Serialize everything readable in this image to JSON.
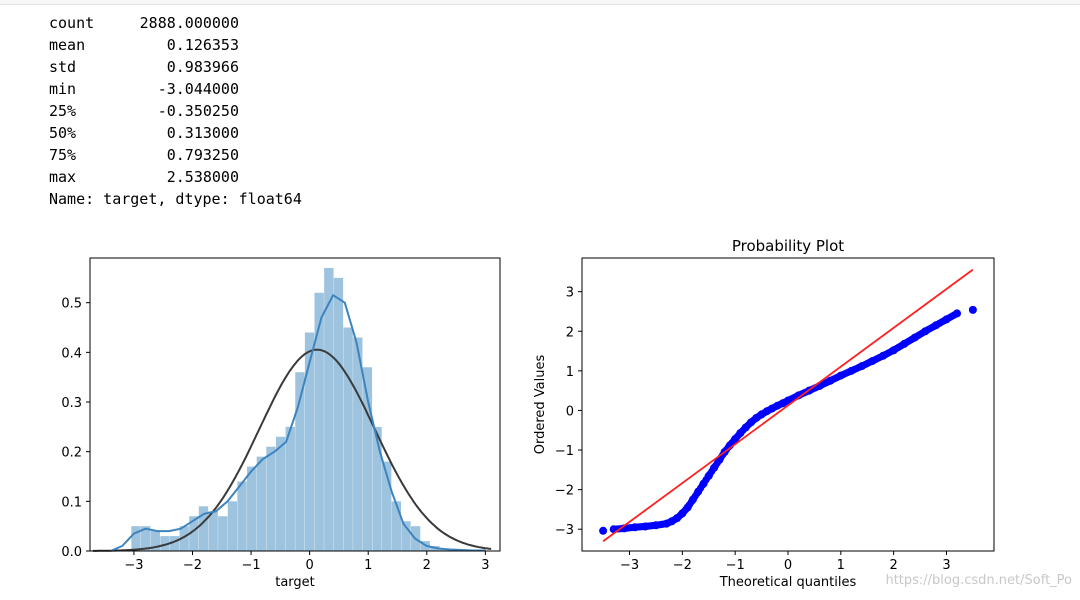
{
  "describe": {
    "rows": [
      {
        "key": "count",
        "value": "2888.000000"
      },
      {
        "key": "mean",
        "value": "0.126353"
      },
      {
        "key": "std",
        "value": "0.983966"
      },
      {
        "key": "min",
        "value": "-3.044000"
      },
      {
        "key": "25%",
        "value": "-0.350250"
      },
      {
        "key": "50%",
        "value": "0.313000"
      },
      {
        "key": "75%",
        "value": "0.793250"
      },
      {
        "key": "max",
        "value": "2.538000"
      }
    ],
    "footer": "Name: target, dtype: float64"
  },
  "watermark": "https://blog.csdn.net/Soft_Po",
  "chart_data": [
    {
      "type": "bar",
      "title": "",
      "xlabel": "target",
      "ylabel": "",
      "xlim": [
        -3.75,
        3.25
      ],
      "ylim": [
        0,
        0.59
      ],
      "x_ticks": [
        -3,
        -2,
        -1,
        0,
        1,
        2,
        3
      ],
      "x_tick_labels": [
        "−3",
        "−2",
        "−1",
        "0",
        "1",
        "2",
        "3"
      ],
      "y_ticks": [
        0,
        0.1,
        0.2,
        0.3,
        0.4,
        0.5
      ],
      "y_tick_labels": [
        "0.0",
        "0.1",
        "0.2",
        "0.3",
        "0.4",
        "0.5"
      ],
      "grid": false,
      "colors": {
        "hist": "#9dc3df",
        "kde": "#3d84be",
        "normal": "#3a3a3a"
      },
      "histogram": {
        "bin_edges": [
          -3.044,
          -2.8794,
          -2.7148,
          -2.5502,
          -2.3856,
          -2.221,
          -2.0564,
          -1.8918,
          -1.7272,
          -1.5626,
          -1.398,
          -1.2334,
          -1.0688,
          -0.9042,
          -0.7396,
          -0.575,
          -0.4104,
          -0.2458,
          -0.0812,
          0.0834,
          0.248,
          0.4126,
          0.5772,
          0.7418,
          0.9064,
          1.071,
          1.2356,
          1.4002,
          1.5648,
          1.7294,
          1.894,
          2.0586,
          2.2232,
          2.3878,
          2.538
        ],
        "density": [
          0.05,
          0.05,
          0.04,
          0.03,
          0.03,
          0.05,
          0.07,
          0.09,
          0.08,
          0.07,
          0.1,
          0.14,
          0.17,
          0.19,
          0.21,
          0.23,
          0.25,
          0.36,
          0.44,
          0.52,
          0.57,
          0.55,
          0.45,
          0.43,
          0.37,
          0.25,
          0.18,
          0.1,
          0.06,
          0.05,
          0.02,
          0.01,
          0.005,
          0.003
        ]
      },
      "kde": {
        "x": [
          -3.4,
          -3.2,
          -3.0,
          -2.8,
          -2.6,
          -2.4,
          -2.2,
          -2.0,
          -1.8,
          -1.6,
          -1.4,
          -1.2,
          -1.0,
          -0.8,
          -0.6,
          -0.4,
          -0.2,
          0.0,
          0.2,
          0.4,
          0.6,
          0.8,
          1.0,
          1.2,
          1.4,
          1.6,
          1.8,
          2.0,
          2.2,
          2.4,
          2.6,
          2.8,
          3.0
        ],
        "y": [
          0.0,
          0.01,
          0.035,
          0.045,
          0.04,
          0.04,
          0.045,
          0.06,
          0.075,
          0.08,
          0.1,
          0.13,
          0.16,
          0.185,
          0.2,
          0.22,
          0.29,
          0.38,
          0.47,
          0.515,
          0.5,
          0.42,
          0.3,
          0.2,
          0.12,
          0.055,
          0.025,
          0.01,
          0.005,
          0.003,
          0.002,
          0.001,
          0.001
        ]
      },
      "normal_fit": {
        "mean": 0.126353,
        "std": 0.983966,
        "x_range": [
          -3.7,
          3.1
        ]
      }
    },
    {
      "type": "scatter",
      "title": "Probability Plot",
      "xlabel": "Theoretical quantiles",
      "ylabel": "Ordered Values",
      "xlim": [
        -3.9,
        3.9
      ],
      "ylim": [
        -3.55,
        3.85
      ],
      "x_ticks": [
        -3,
        -2,
        -1,
        0,
        1,
        2,
        3
      ],
      "x_tick_labels": [
        "−3",
        "−2",
        "−1",
        "0",
        "1",
        "2",
        "3"
      ],
      "y_ticks": [
        -3,
        -2,
        -1,
        0,
        1,
        2,
        3
      ],
      "y_tick_labels": [
        "−3",
        "−2",
        "−1",
        "0",
        "1",
        "2",
        "3"
      ],
      "grid": false,
      "colors": {
        "points": "#0000ff",
        "line": "#ff2020"
      },
      "points": {
        "x": [
          -3.5,
          -3.3,
          -3.1,
          -2.9,
          -2.7,
          -2.5,
          -2.3,
          -2.2,
          -2.1,
          -2.0,
          -1.9,
          -1.8,
          -1.7,
          -1.6,
          -1.5,
          -1.4,
          -1.3,
          -1.2,
          -1.1,
          -1.0,
          -0.9,
          -0.8,
          -0.7,
          -0.6,
          -0.5,
          -0.4,
          -0.3,
          -0.2,
          -0.1,
          0.0,
          0.2,
          0.4,
          0.6,
          0.8,
          1.0,
          1.2,
          1.4,
          1.6,
          1.8,
          2.0,
          2.2,
          2.4,
          2.6,
          2.8,
          3.0,
          3.2,
          3.5
        ],
        "y": [
          -3.04,
          -3.0,
          -2.98,
          -2.95,
          -2.93,
          -2.9,
          -2.86,
          -2.8,
          -2.72,
          -2.6,
          -2.45,
          -2.25,
          -2.05,
          -1.85,
          -1.65,
          -1.45,
          -1.25,
          -1.05,
          -0.88,
          -0.72,
          -0.57,
          -0.43,
          -0.3,
          -0.19,
          -0.1,
          -0.02,
          0.05,
          0.12,
          0.18,
          0.25,
          0.38,
          0.5,
          0.62,
          0.75,
          0.88,
          1.0,
          1.12,
          1.25,
          1.38,
          1.52,
          1.68,
          1.84,
          2.0,
          2.15,
          2.3,
          2.45,
          2.54
        ]
      },
      "fit_line": {
        "slope": 0.98,
        "intercept": 0.126,
        "x_range": [
          -3.5,
          3.5
        ]
      }
    }
  ]
}
